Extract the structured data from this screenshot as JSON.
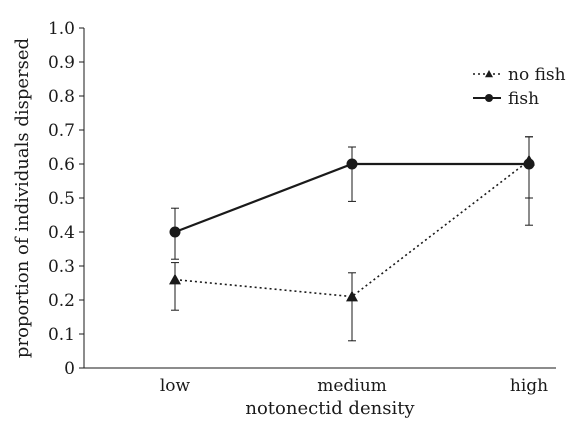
{
  "chart_data": {
    "type": "line",
    "title": "",
    "xlabel": "notonectid density",
    "ylabel": "proportion of individuals dispersed",
    "categories": [
      "low",
      "medium",
      "high"
    ],
    "ylim": [
      0,
      1.0
    ],
    "yticks": [
      "0",
      "0.1",
      "0.2",
      "0.3",
      "0.4",
      "0.5",
      "0.6",
      "0.7",
      "0.8",
      "0.9",
      "1.0"
    ],
    "grid": false,
    "legend_position": "top-right",
    "series": [
      {
        "name": "no fish",
        "line_style": "dotted",
        "marker": "triangle",
        "values": [
          0.26,
          0.21,
          0.61
        ],
        "error_low": [
          0.17,
          0.08,
          0.5
        ],
        "error_high": [
          0.31,
          0.28,
          0.68
        ]
      },
      {
        "name": "fish",
        "line_style": "solid",
        "marker": "circle",
        "values": [
          0.4,
          0.6,
          0.6
        ],
        "error_low": [
          0.32,
          0.49,
          0.42
        ],
        "error_high": [
          0.47,
          0.65,
          0.68
        ]
      }
    ],
    "color": "#1a1a1a"
  }
}
